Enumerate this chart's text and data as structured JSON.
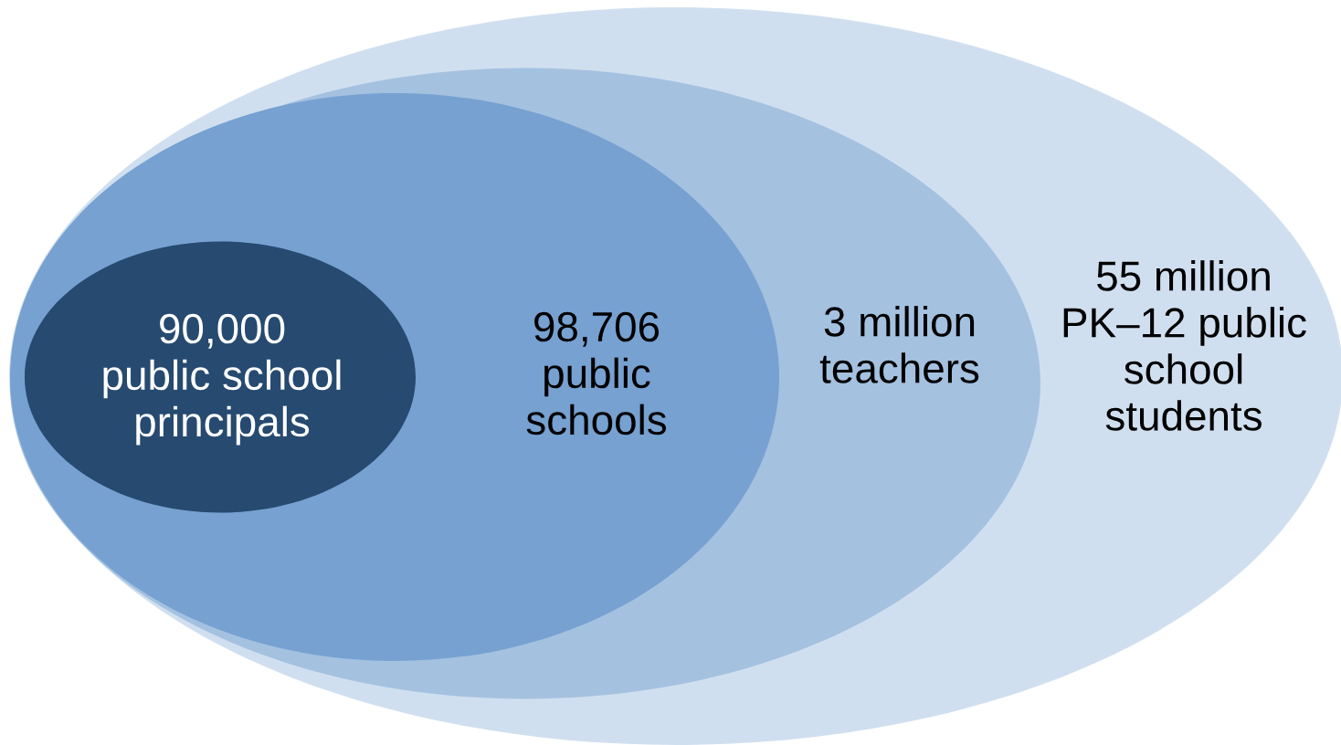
{
  "chart_data": {
    "type": "other",
    "categories": [
      "public school\nprincipals",
      "public\nschools",
      "teachers",
      "PK–12 public\nschool\nstudents"
    ],
    "values": [
      90000,
      98706,
      3000000,
      55000000
    ],
    "value_labels": [
      "90,000",
      "98,706",
      "3 million",
      "55 million"
    ],
    "colors": [
      "#264a70",
      "#76a1d1",
      "#a4c1e0",
      "#d0dfef"
    ]
  }
}
